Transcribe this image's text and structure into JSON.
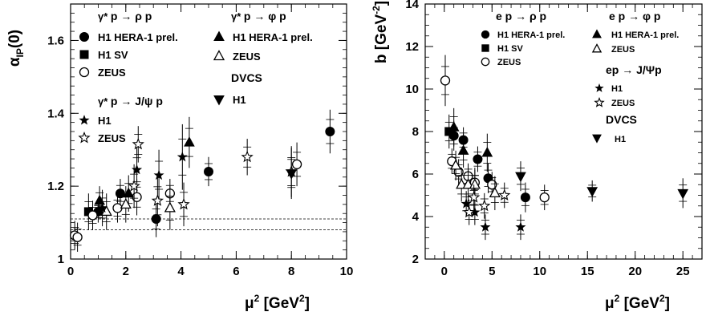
{
  "chart_data": [
    {
      "type": "scatter",
      "ylabel": "αIP(0)",
      "xlabel": "μ² [GeV²]",
      "xlim": [
        0,
        10
      ],
      "ylim": [
        1.0,
        1.7
      ],
      "xticks": [
        "0",
        "2",
        "4",
        "6",
        "8",
        "10"
      ],
      "yticks": [
        "1",
        "1.2",
        "1.4",
        "1.6"
      ],
      "reference_lines": [
        1.08,
        1.11
      ],
      "legend_groups": [
        {
          "heading": "γ* p → ρ p",
          "entries": [
            "H1 HERA-1 prel.",
            "H1 SV",
            "ZEUS"
          ]
        },
        {
          "heading": "γ* p → φ p",
          "entries": [
            "H1 HERA-1 prel.",
            "ZEUS"
          ]
        },
        {
          "heading": "γ* p → J/ψ p",
          "entries": [
            "H1",
            "ZEUS"
          ]
        },
        {
          "heading": "DVCS",
          "entries": [
            "H1"
          ]
        }
      ],
      "series": [
        {
          "name": "H1 HERA-1 prel.",
          "process": "ρ",
          "marker": "circle-filled",
          "points": [
            [
              1.0,
              1.13,
              0.03
            ],
            [
              1.8,
              1.18,
              0.04
            ],
            [
              3.1,
              1.11,
              0.05
            ],
            [
              5.0,
              1.24,
              0.04
            ],
            [
              9.4,
              1.35,
              0.06
            ]
          ]
        },
        {
          "name": "H1 SV",
          "process": "ρ",
          "marker": "square-filled",
          "points": [
            [
              0.65,
              1.13,
              0.05
            ]
          ]
        },
        {
          "name": "ZEUS",
          "process": "ρ",
          "marker": "circle-open",
          "points": [
            [
              0.15,
              1.065,
              0.04
            ],
            [
              0.25,
              1.06,
              0.04
            ],
            [
              0.8,
              1.12,
              0.04
            ],
            [
              1.7,
              1.14,
              0.04
            ],
            [
              2.4,
              1.17,
              0.05
            ],
            [
              3.6,
              1.18,
              0.04
            ],
            [
              8.2,
              1.26,
              0.06
            ]
          ]
        },
        {
          "name": "H1 HERA-1 prel.",
          "process": "φ",
          "marker": "triangle-up-filled",
          "points": [
            [
              1.05,
              1.16,
              0.04
            ],
            [
              2.1,
              1.18,
              0.05
            ],
            [
              4.3,
              1.32,
              0.07
            ]
          ]
        },
        {
          "name": "ZEUS",
          "process": "φ",
          "marker": "triangle-up-open",
          "points": [
            [
              1.3,
              1.13,
              0.05
            ],
            [
              2.0,
              1.15,
              0.05
            ],
            [
              3.6,
              1.14,
              0.06
            ]
          ]
        },
        {
          "name": "H1",
          "process": "J/ψ",
          "marker": "star-filled",
          "points": [
            [
              1.15,
              1.14,
              0.05
            ],
            [
              2.4,
              1.245,
              0.06
            ],
            [
              3.2,
              1.23,
              0.07
            ],
            [
              4.05,
              1.28,
              0.09
            ]
          ]
        },
        {
          "name": "ZEUS",
          "process": "J/ψ",
          "marker": "star-open",
          "points": [
            [
              2.3,
              1.2,
              0.06
            ],
            [
              2.45,
              1.315,
              0.05
            ],
            [
              3.15,
              1.16,
              0.07
            ],
            [
              4.1,
              1.15,
              0.06
            ],
            [
              6.4,
              1.28,
              0.05
            ],
            [
              8.0,
              1.24,
              0.07
            ]
          ]
        },
        {
          "name": "H1",
          "process": "DVCS",
          "marker": "triangle-down-filled",
          "points": [
            [
              8.0,
              1.235,
              0.07
            ]
          ]
        }
      ]
    },
    {
      "type": "scatter",
      "ylabel": "b [GeV⁻²]",
      "xlabel": "μ² [GeV²]",
      "xlim": [
        -2,
        27
      ],
      "ylim": [
        2,
        14
      ],
      "xticks": [
        "0",
        "5",
        "10",
        "15",
        "20",
        "25"
      ],
      "yticks": [
        "2",
        "4",
        "6",
        "8",
        "10",
        "12",
        "14"
      ],
      "legend_groups": [
        {
          "heading": "e p → ρ p",
          "entries": [
            "H1 HERA-1 prel.",
            "H1 SV",
            "ZEUS"
          ]
        },
        {
          "heading": "e p → φ p",
          "entries": [
            "H1 HERA-1 prel.",
            "ZEUS"
          ]
        },
        {
          "heading": "ep → J/Ψp",
          "entries": [
            "H1",
            "ZEUS"
          ]
        },
        {
          "heading": "DVCS",
          "entries": [
            "H1"
          ]
        }
      ],
      "series": [
        {
          "name": "H1 HERA-1 prel.",
          "process": "ρ",
          "marker": "circle-filled",
          "points": [
            [
              1.0,
              7.8,
              0.7
            ],
            [
              2.0,
              7.6,
              0.6
            ],
            [
              3.5,
              6.7,
              0.6
            ],
            [
              4.6,
              5.8,
              0.7
            ],
            [
              8.5,
              4.9,
              0.7
            ]
          ]
        },
        {
          "name": "H1 SV",
          "process": "ρ",
          "marker": "square-filled",
          "points": [
            [
              0.5,
              8.0,
              0.8
            ]
          ]
        },
        {
          "name": "ZEUS",
          "process": "ρ",
          "marker": "circle-open",
          "points": [
            [
              0.1,
              10.4,
              1.2
            ],
            [
              0.8,
              6.6,
              0.6
            ],
            [
              1.5,
              6.1,
              0.6
            ],
            [
              2.5,
              5.9,
              0.6
            ],
            [
              3.2,
              5.6,
              0.6
            ],
            [
              5.0,
              5.5,
              0.6
            ],
            [
              10.5,
              4.9,
              0.6
            ]
          ]
        },
        {
          "name": "H1 HERA-1 prel.",
          "process": "φ",
          "marker": "triangle-up-filled",
          "points": [
            [
              1.0,
              8.2,
              0.9
            ],
            [
              2.0,
              7.1,
              0.8
            ],
            [
              4.5,
              7.0,
              0.9
            ]
          ]
        },
        {
          "name": "ZEUS",
          "process": "φ",
          "marker": "triangle-up-open",
          "points": [
            [
              1.2,
              6.4,
              0.7
            ],
            [
              1.8,
              5.5,
              0.8
            ],
            [
              2.5,
              5.5,
              0.8
            ],
            [
              3.2,
              5.5,
              0.8
            ],
            [
              5.3,
              5.1,
              0.8
            ]
          ]
        },
        {
          "name": "H1",
          "process": "J/ψ",
          "marker": "star-filled",
          "points": [
            [
              2.3,
              4.6,
              0.6
            ],
            [
              3.2,
              4.2,
              0.6
            ],
            [
              4.3,
              3.5,
              0.6
            ],
            [
              8.0,
              3.5,
              0.6
            ]
          ]
        },
        {
          "name": "ZEUS",
          "process": "J/ψ",
          "marker": "star-open",
          "points": [
            [
              2.6,
              4.2,
              0.6
            ],
            [
              3.1,
              4.9,
              0.6
            ],
            [
              4.2,
              4.5,
              0.6
            ],
            [
              6.3,
              5.0,
              0.6
            ]
          ]
        },
        {
          "name": "H1",
          "process": "DVCS",
          "marker": "triangle-down-filled",
          "points": [
            [
              8.0,
              5.9,
              0.7
            ],
            [
              15.5,
              5.2,
              0.5
            ],
            [
              25.0,
              5.1,
              0.7
            ]
          ]
        }
      ]
    }
  ]
}
